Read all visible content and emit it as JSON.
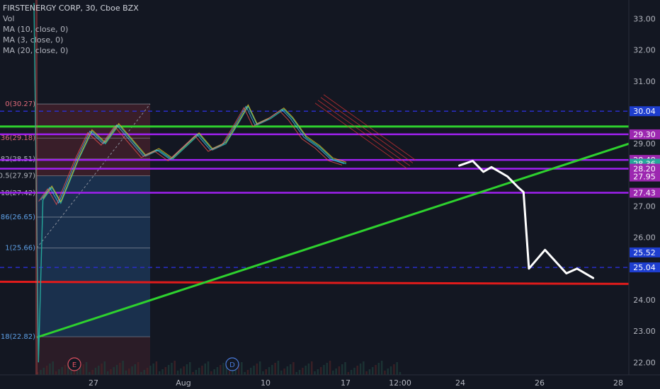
{
  "legend": {
    "title": "FIRSTENERGY CORP, 30, Cboe BZX",
    "items": [
      "Vol",
      "MA (10, close, 0)",
      "MA (3, close, 0)",
      "MA (20, close, 0)"
    ]
  },
  "colors": {
    "background": "#131722",
    "green_line": "#2ed12e",
    "red_line": "#e01b1b",
    "purple_line": "#a020f0",
    "blue_dashed": "#2a2ec8",
    "fib_red_box": "#5a2530",
    "fib_blue_box": "#1d3a5c",
    "arrow": "#ffffff",
    "badge_blue": "#1e3ecf",
    "badge_purple": "#9c27b0",
    "badge_teal": "#26a69a"
  },
  "chart_data": {
    "type": "candlestick",
    "symbol": "FIRSTENERGY CORP",
    "interval": "30",
    "exchange": "Cboe BZX",
    "y_axis": {
      "ylim": [
        21.6,
        33.6
      ],
      "ticks": [
        22.0,
        23.0,
        24.0,
        25.0,
        26.0,
        27.0,
        28.0,
        29.0,
        30.0,
        31.0,
        32.0,
        33.0
      ],
      "tick_labels": [
        "22.00",
        "23.00",
        "24.00",
        "25.00",
        "26.00",
        "27.00",
        "28.00",
        "29.00",
        "30.00",
        "31.00",
        "32.00",
        "33.00"
      ]
    },
    "x_axis": {
      "tick_labels": [
        "27",
        "Aug",
        "10",
        "17",
        "12:00",
        "24",
        "26",
        "28"
      ]
    },
    "price_badges": [
      {
        "label": "30.04",
        "value": 30.04,
        "style": "blue"
      },
      {
        "label": "29.30",
        "value": 29.3,
        "style": "purple"
      },
      {
        "label": "28.48",
        "value": 28.48,
        "style": "purple"
      },
      {
        "label": "28.36",
        "value": 28.36,
        "style": "teal"
      },
      {
        "label": "28.20",
        "value": 28.2,
        "style": "purple"
      },
      {
        "label": "27.95",
        "value": 27.95,
        "style": "purple"
      },
      {
        "label": "27.43",
        "value": 27.43,
        "style": "purple"
      },
      {
        "label": "25.52",
        "value": 25.52,
        "style": "blue"
      },
      {
        "label": "25.04",
        "value": 25.04,
        "style": "blue"
      }
    ],
    "fib_levels": [
      {
        "label": "0(30.27)",
        "value": 30.27
      },
      {
        "label": "36(29.18)",
        "value": 29.18
      },
      {
        "label": "82(28.51)",
        "value": 28.51
      },
      {
        "label": "0.5(27.97)",
        "value": 27.97
      },
      {
        "label": "18(27.42)",
        "value": 27.42
      },
      {
        "label": "86(26.65)",
        "value": 26.65
      },
      {
        "label": "1(25.66)",
        "value": 25.66
      },
      {
        "label": "18(22.82)",
        "value": 22.82
      }
    ],
    "horizontal_lines": [
      {
        "kind": "green",
        "value": 29.55
      },
      {
        "kind": "red",
        "value": 24.58
      },
      {
        "kind": "blue-dashed",
        "value": 30.04
      },
      {
        "kind": "blue-dashed",
        "value": 25.04
      },
      {
        "kind": "purple",
        "value": 29.3
      },
      {
        "kind": "purple",
        "value": 28.48
      },
      {
        "kind": "purple",
        "value": 28.2
      },
      {
        "kind": "purple",
        "value": 27.43
      }
    ],
    "trendline_green": {
      "start": {
        "bar": 0.0,
        "value": 22.8
      },
      "end": {
        "bar": 1.0,
        "value": 29.0
      }
    },
    "price_path": [
      [
        0.0,
        33.5
      ],
      [
        0.01,
        22.0
      ],
      [
        0.02,
        27.2
      ],
      [
        0.04,
        27.6
      ],
      [
        0.06,
        27.1
      ],
      [
        0.08,
        27.8
      ],
      [
        0.1,
        28.5
      ],
      [
        0.13,
        29.4
      ],
      [
        0.16,
        29.0
      ],
      [
        0.19,
        29.6
      ],
      [
        0.22,
        29.1
      ],
      [
        0.25,
        28.6
      ],
      [
        0.28,
        28.8
      ],
      [
        0.31,
        28.5
      ],
      [
        0.34,
        28.9
      ],
      [
        0.37,
        29.3
      ],
      [
        0.4,
        28.8
      ],
      [
        0.43,
        29.0
      ],
      [
        0.46,
        29.7
      ],
      [
        0.48,
        30.2
      ],
      [
        0.5,
        29.6
      ],
      [
        0.53,
        29.8
      ],
      [
        0.56,
        30.1
      ],
      [
        0.58,
        29.8
      ],
      [
        0.61,
        29.2
      ],
      [
        0.64,
        28.9
      ],
      [
        0.67,
        28.5
      ],
      [
        0.7,
        28.36
      ]
    ],
    "projection_path": [
      [
        0.7,
        28.3
      ],
      [
        0.725,
        28.45
      ],
      [
        0.745,
        28.1
      ],
      [
        0.76,
        28.25
      ],
      [
        0.79,
        27.95
      ],
      [
        0.81,
        27.6
      ],
      [
        0.82,
        27.45
      ],
      [
        0.83,
        25.0
      ],
      [
        0.86,
        25.6
      ],
      [
        0.9,
        24.85
      ],
      [
        0.92,
        25.0
      ],
      [
        0.95,
        24.7
      ]
    ],
    "event_markers": [
      {
        "label": "E",
        "position": 0.15
      },
      {
        "label": "D",
        "position": 0.39
      }
    ]
  }
}
